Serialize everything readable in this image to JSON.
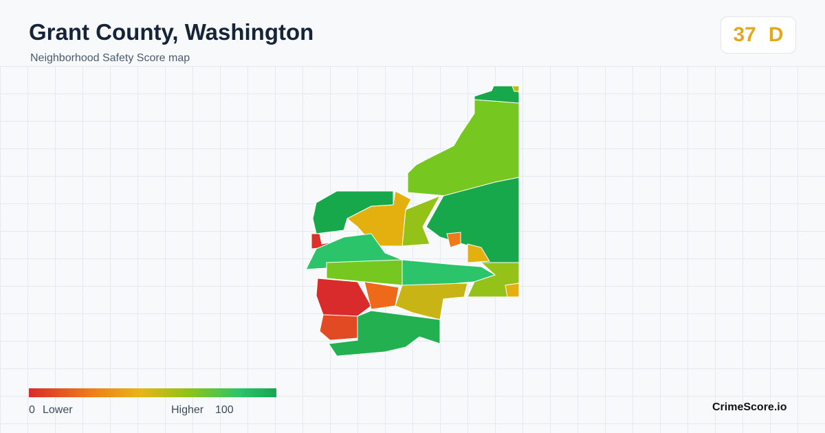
{
  "header": {
    "title": "Grant County, Washington",
    "subtitle": "Neighborhood Safety Score map"
  },
  "score": {
    "value": 37,
    "grade": "D"
  },
  "legend": {
    "min": 0,
    "min_label": "Lower",
    "max_label": "Higher",
    "max": 100
  },
  "brand": "CrimeScore.io"
}
